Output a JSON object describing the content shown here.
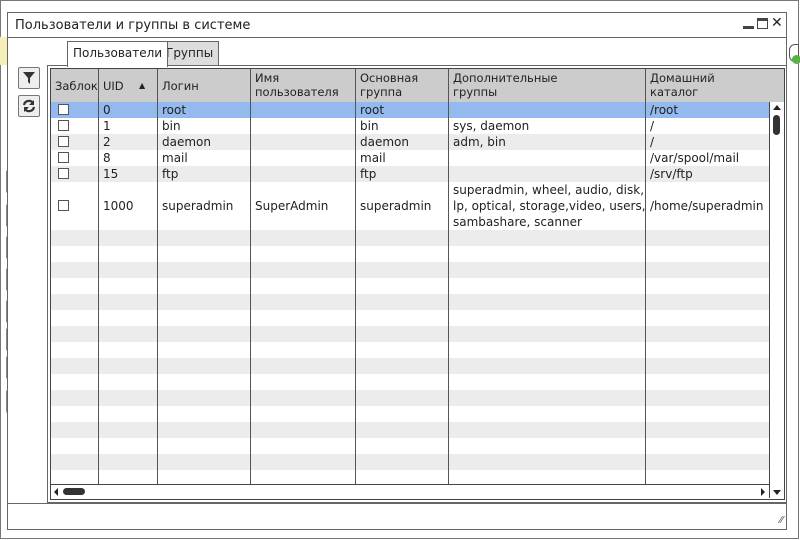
{
  "window": {
    "title": "Пользователи и группы в системе"
  },
  "tabs": [
    {
      "label": "Пользователи",
      "active": true
    },
    {
      "label": "Группы",
      "active": false
    }
  ],
  "toolbar": {
    "filter_icon": "filter-icon",
    "refresh_icon": "refresh-icon"
  },
  "table": {
    "columns": [
      {
        "label": "Заблок",
        "sort": null
      },
      {
        "label": "UID",
        "sort": "ascending"
      },
      {
        "label": "Логин"
      },
      {
        "label": "Имя\nпользователя"
      },
      {
        "label": "Основная\nгруппа"
      },
      {
        "label": "Дополнительные\nгруппы"
      },
      {
        "label": "Домашний\nкаталог"
      }
    ],
    "rows": [
      {
        "locked": false,
        "uid": "0",
        "login": "root",
        "name": "",
        "group": "root",
        "extra": "",
        "home": "/root",
        "selected": true
      },
      {
        "locked": false,
        "uid": "1",
        "login": "bin",
        "name": "",
        "group": "bin",
        "extra": "sys, daemon",
        "home": "/"
      },
      {
        "locked": false,
        "uid": "2",
        "login": "daemon",
        "name": "",
        "group": "daemon",
        "extra": "adm, bin",
        "home": "/"
      },
      {
        "locked": false,
        "uid": "8",
        "login": "mail",
        "name": "",
        "group": "mail",
        "extra": "",
        "home": "/var/spool/mail"
      },
      {
        "locked": false,
        "uid": "15",
        "login": "ftp",
        "name": "",
        "group": "ftp",
        "extra": "",
        "home": "/srv/ftp"
      },
      {
        "locked": false,
        "uid": "1000",
        "login": "superadmin",
        "name": "SuperAdmin",
        "group": "superadmin",
        "extra": "superadmin, wheel, audio, disk,\nlp, optical, storage,video, users,\nsambashare, scanner",
        "home": "/home/superadmin"
      }
    ]
  },
  "colors": {
    "selected_row": "#93b9ee",
    "header": "#cccccc",
    "stripe": "#ececec"
  }
}
